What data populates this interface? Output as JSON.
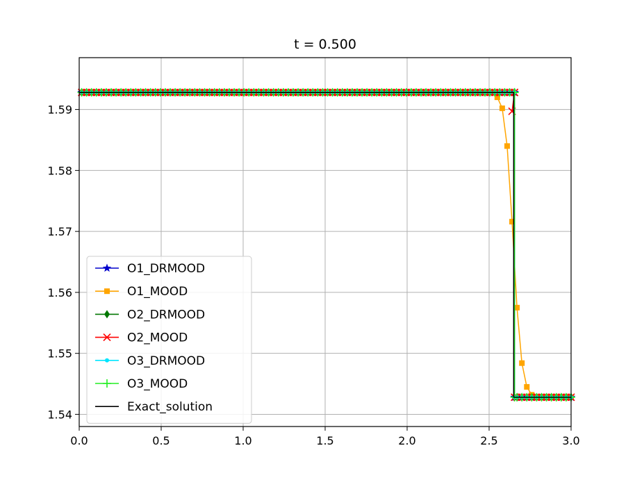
{
  "chart_data": {
    "type": "line",
    "title": "t = 0.500",
    "xlabel": "",
    "ylabel": "",
    "xlim": [
      0.0,
      3.0
    ],
    "ylim": [
      1.538,
      1.5985
    ],
    "x_ticks": [
      0.0,
      0.5,
      1.0,
      1.5,
      2.0,
      2.5,
      3.0
    ],
    "x_tick_labels": [
      "0.0",
      "0.5",
      "1.0",
      "1.5",
      "2.0",
      "2.5",
      "3.0"
    ],
    "y_ticks": [
      1.54,
      1.55,
      1.56,
      1.57,
      1.58,
      1.59
    ],
    "y_tick_labels": [
      "1.54",
      "1.55",
      "1.56",
      "1.57",
      "1.58",
      "1.59"
    ],
    "grid": true,
    "legend_position": "lower-left",
    "shock_x": 2.65,
    "left_state": 1.5928,
    "right_state": 1.5428,
    "marker_spacing": 0.03,
    "series": [
      {
        "name": "O1_DRMOOD",
        "color": "#0000cc",
        "marker": "star",
        "profile": "sharp",
        "shock": 2.655
      },
      {
        "name": "O1_MOOD",
        "color": "#ffa500",
        "marker": "square",
        "profile": "smeared",
        "transition": [
          [
            2.55,
            1.592
          ],
          [
            2.58,
            1.5902
          ],
          [
            2.61,
            1.584
          ],
          [
            2.64,
            1.5716
          ],
          [
            2.67,
            1.5575
          ],
          [
            2.7,
            1.5484
          ],
          [
            2.73,
            1.5445
          ],
          [
            2.76,
            1.5432
          ]
        ]
      },
      {
        "name": "O2_DRMOOD",
        "color": "#007700",
        "marker": "diamond",
        "profile": "sharp",
        "shock": 2.655
      },
      {
        "name": "O2_MOOD",
        "color": "#ff0000",
        "marker": "x",
        "profile": "sharp",
        "shock": 2.655,
        "transition": [
          [
            2.64,
            1.5897
          ]
        ]
      },
      {
        "name": "O3_DRMOOD",
        "color": "#00e5ff",
        "marker": "dot",
        "profile": "sharp",
        "shock": 2.655
      },
      {
        "name": "O3_MOOD",
        "color": "#22ee22",
        "marker": "plus",
        "profile": "sharp",
        "shock": 2.655
      },
      {
        "name": "Exact_solution",
        "color": "#000000",
        "marker": "none",
        "profile": "step",
        "shock": 2.65
      }
    ]
  }
}
